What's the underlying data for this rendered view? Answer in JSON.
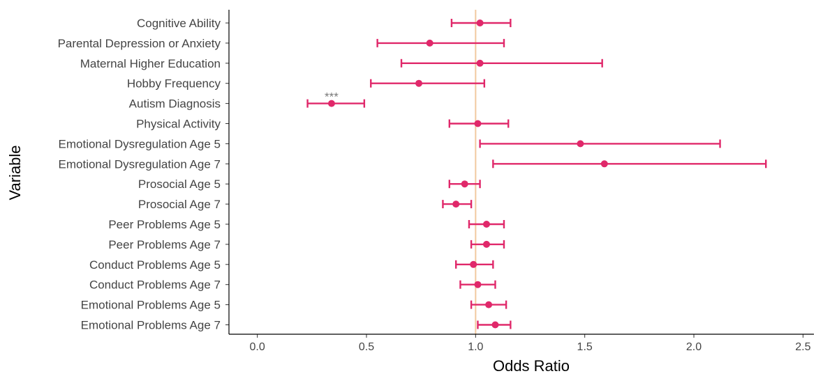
{
  "chart_data": {
    "type": "forest",
    "xlabel": "Odds Ratio",
    "ylabel": "Variable",
    "xlim": [
      -0.13,
      2.55
    ],
    "xticks": [
      0.0,
      0.5,
      1.0,
      1.5,
      2.0,
      2.5
    ],
    "xtick_labels": [
      "0.0",
      "0.5",
      "1.0",
      "1.5",
      "2.0",
      "2.5"
    ],
    "reference_line": 1.0,
    "grid": false,
    "colors": {
      "points": "#e0286a",
      "reference_line": "#f2c9a0",
      "axis": "#000000",
      "text": "#444444"
    },
    "rows": [
      {
        "label": "Cognitive Ability",
        "or": 1.02,
        "lower": 0.89,
        "upper": 1.16,
        "annotation": ""
      },
      {
        "label": "Parental Depression or Anxiety",
        "or": 0.79,
        "lower": 0.55,
        "upper": 1.13,
        "annotation": ""
      },
      {
        "label": "Maternal Higher Education",
        "or": 1.02,
        "lower": 0.66,
        "upper": 1.58,
        "annotation": ""
      },
      {
        "label": "Hobby Frequency",
        "or": 0.74,
        "lower": 0.52,
        "upper": 1.04,
        "annotation": ""
      },
      {
        "label": "Autism Diagnosis",
        "or": 0.34,
        "lower": 0.23,
        "upper": 0.49,
        "annotation": "***"
      },
      {
        "label": "Physical Activity",
        "or": 1.01,
        "lower": 0.88,
        "upper": 1.15,
        "annotation": ""
      },
      {
        "label": "Emotional Dysregulation Age 5",
        "or": 1.48,
        "lower": 1.02,
        "upper": 2.12,
        "annotation": ""
      },
      {
        "label": "Emotional Dysregulation Age 7",
        "or": 1.59,
        "lower": 1.08,
        "upper": 2.33,
        "annotation": ""
      },
      {
        "label": "Prosocial Age 5",
        "or": 0.95,
        "lower": 0.88,
        "upper": 1.02,
        "annotation": ""
      },
      {
        "label": "Prosocial Age 7",
        "or": 0.91,
        "lower": 0.85,
        "upper": 0.98,
        "annotation": ""
      },
      {
        "label": "Peer Problems Age 5",
        "or": 1.05,
        "lower": 0.97,
        "upper": 1.13,
        "annotation": ""
      },
      {
        "label": "Peer Problems Age 7",
        "or": 1.05,
        "lower": 0.98,
        "upper": 1.13,
        "annotation": ""
      },
      {
        "label": "Conduct Problems Age 5",
        "or": 0.99,
        "lower": 0.91,
        "upper": 1.08,
        "annotation": ""
      },
      {
        "label": "Conduct Problems Age 7",
        "or": 1.01,
        "lower": 0.93,
        "upper": 1.09,
        "annotation": ""
      },
      {
        "label": "Emotional Problems Age 5",
        "or": 1.06,
        "lower": 0.98,
        "upper": 1.14,
        "annotation": ""
      },
      {
        "label": "Emotional Problems Age 7",
        "or": 1.09,
        "lower": 1.01,
        "upper": 1.16,
        "annotation": ""
      }
    ]
  }
}
